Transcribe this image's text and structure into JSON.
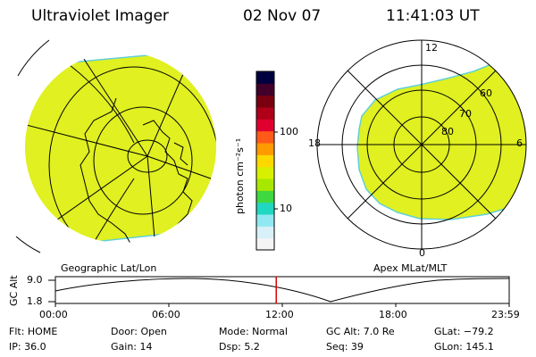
{
  "header": {
    "instrument": "Ultraviolet Imager",
    "date": "02 Nov 07",
    "time": "11:41:03 UT"
  },
  "colorbar": {
    "unit_label": "photon cm⁻²s⁻¹",
    "tick_100": "100",
    "tick_10": "10",
    "colors": [
      "#000040",
      "#40002a",
      "#7a0010",
      "#b00018",
      "#e00030",
      "#ff5a1a",
      "#ff9a00",
      "#ffd800",
      "#d8f000",
      "#a8e800",
      "#40d840",
      "#20d8c0",
      "#90e8f0",
      "#d8f0f8",
      "#f4f4f4"
    ],
    "fill_color": "#e0f020"
  },
  "left_map": {
    "label": "Geographic Lat/Lon"
  },
  "right_map": {
    "label": "Apex  MLat/MLT",
    "mlt_12": "12",
    "mlt_18": "18",
    "mlt_6": "6",
    "mlt_0": "0",
    "mlat_60": "60",
    "mlat_70": "70",
    "mlat_80": "80"
  },
  "altitude_plot": {
    "ylabel": "GC Alt",
    "ytick_top": "9.0",
    "ytick_bottom": "1.8",
    "xticks": [
      "00:00",
      "06:00",
      "12:00",
      "18:00",
      "23:59"
    ],
    "current_time_hours": 11.68
  },
  "info": {
    "flt": "Flt: HOME",
    "ip": "IP: 36.0",
    "door": "Door: Open",
    "gain": "Gain: 14",
    "mode": "Mode: Normal",
    "dsp": "Dsp:    5.2",
    "gc_alt": "GC Alt: 7.0 Re",
    "seq": "Seq: 39",
    "glat": "GLat: −79.2",
    "glon": "GLon: 145.1"
  }
}
